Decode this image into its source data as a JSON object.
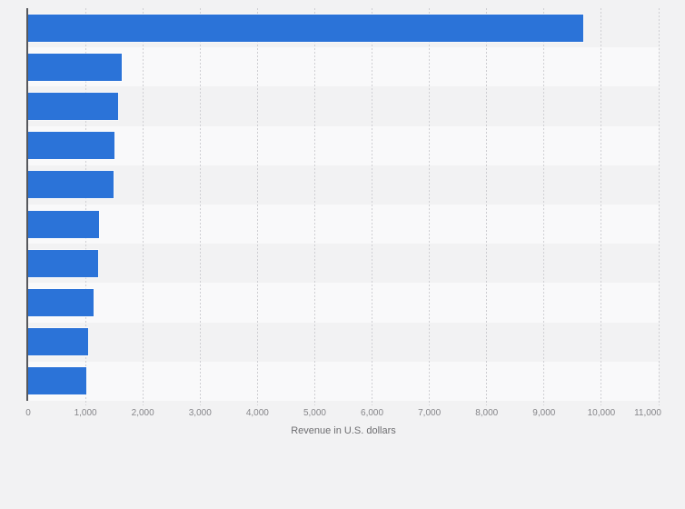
{
  "chart_data": {
    "type": "bar",
    "orientation": "horizontal",
    "title": "",
    "categories": [
      "",
      "",
      "",
      "",
      "",
      "",
      "",
      "",
      "",
      ""
    ],
    "values": [
      9680,
      1630,
      1565,
      1505,
      1490,
      1240,
      1225,
      1145,
      1040,
      1020
    ],
    "xlabel": "Revenue in U.S. dollars",
    "ylabel": "",
    "xlim": [
      0,
      11000
    ],
    "x_ticks": [
      0,
      1000,
      2000,
      3000,
      4000,
      5000,
      6000,
      7000,
      8000,
      9000,
      10000,
      11000
    ],
    "x_tick_labels": [
      "0",
      "1,000",
      "2,000",
      "3,000",
      "4,000",
      "5,000",
      "6,000",
      "7,000",
      "8,000",
      "9,000",
      "10,000",
      "11,000"
    ],
    "grid": "vertical dotted gridlines at each 1,000, extending slightly below plot as ticks",
    "legend": "none",
    "row_stripes": "alternating, odd rows match page background, even rows lighter",
    "colors": {
      "bar": "#2b73d8",
      "background": "#f2f2f3",
      "row_stripe_light": "#f9f9fa",
      "gridline": "#cfcfd3",
      "axis_line": "#57585c",
      "tick_label": "#86868a",
      "axis_title": "#6d6d70"
    }
  }
}
